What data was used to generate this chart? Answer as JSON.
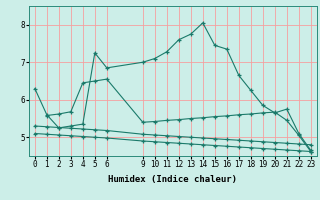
{
  "background_color": "#cceee8",
  "grid_color": "#f5a0a0",
  "line_color": "#1a7a6a",
  "xlabel": "Humidex (Indice chaleur)",
  "xlim": [
    -0.5,
    23.5
  ],
  "ylim": [
    4.5,
    8.5
  ],
  "xticks": [
    0,
    1,
    2,
    3,
    4,
    5,
    6,
    9,
    10,
    11,
    12,
    13,
    14,
    15,
    16,
    17,
    18,
    19,
    20,
    21,
    22,
    23
  ],
  "yticks": [
    5,
    6,
    7,
    8
  ],
  "series": [
    {
      "x": [
        0,
        1,
        2,
        3,
        4,
        5,
        6,
        9,
        10,
        11,
        12,
        13,
        14,
        15,
        16,
        17,
        18,
        19,
        20,
        21,
        22,
        23
      ],
      "y": [
        6.3,
        5.6,
        5.25,
        5.3,
        5.35,
        7.25,
        6.85,
        7.0,
        7.1,
        7.28,
        7.6,
        7.75,
        8.05,
        7.45,
        7.35,
        6.65,
        6.25,
        5.85,
        5.65,
        5.75,
        5.1,
        4.65
      ]
    },
    {
      "x": [
        1,
        2,
        3,
        4,
        5,
        6,
        9,
        10,
        11,
        12,
        13,
        14,
        15,
        16,
        17,
        18,
        19,
        20,
        21,
        22,
        23
      ],
      "y": [
        5.58,
        5.62,
        5.68,
        6.45,
        6.5,
        6.55,
        5.4,
        5.42,
        5.45,
        5.47,
        5.5,
        5.52,
        5.55,
        5.57,
        5.6,
        5.62,
        5.65,
        5.67,
        5.45,
        5.05,
        4.62
      ]
    },
    {
      "x": [
        0,
        1,
        2,
        3,
        4,
        5,
        6,
        9,
        10,
        11,
        12,
        13,
        14,
        15,
        16,
        17,
        18,
        19,
        20,
        21,
        22,
        23
      ],
      "y": [
        5.3,
        5.28,
        5.26,
        5.24,
        5.22,
        5.2,
        5.18,
        5.08,
        5.06,
        5.04,
        5.02,
        5.0,
        4.98,
        4.96,
        4.94,
        4.92,
        4.9,
        4.88,
        4.86,
        4.84,
        4.82,
        4.8
      ]
    },
    {
      "x": [
        0,
        1,
        2,
        3,
        4,
        5,
        6,
        9,
        10,
        11,
        12,
        13,
        14,
        15,
        16,
        17,
        18,
        19,
        20,
        21,
        22,
        23
      ],
      "y": [
        5.1,
        5.08,
        5.06,
        5.04,
        5.02,
        5.0,
        4.98,
        4.9,
        4.88,
        4.86,
        4.84,
        4.82,
        4.8,
        4.78,
        4.76,
        4.74,
        4.72,
        4.7,
        4.68,
        4.66,
        4.64,
        4.62
      ]
    }
  ]
}
